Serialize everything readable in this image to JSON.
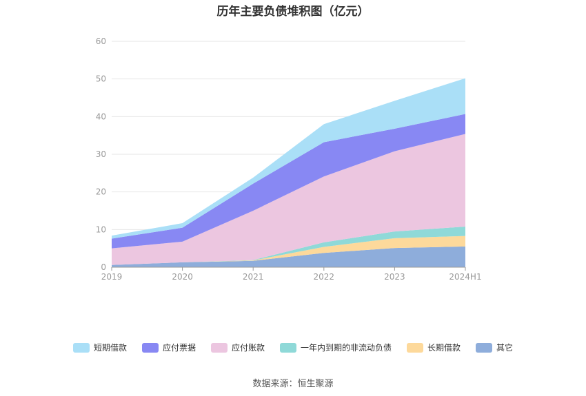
{
  "chart_data": {
    "type": "area",
    "stacked": true,
    "title": "历年主要负债堆积图（亿元）",
    "categories": [
      "2019",
      "2020",
      "2021",
      "2022",
      "2023",
      "2024H1"
    ],
    "ylim": [
      0,
      60
    ],
    "yticks": [
      0,
      10,
      20,
      30,
      40,
      50,
      60
    ],
    "grid": true,
    "legend_position": "bottom",
    "series": [
      {
        "name": "其它",
        "color": "#8eaddb",
        "values": [
          0.6,
          1.3,
          1.7,
          3.8,
          5.1,
          5.5
        ]
      },
      {
        "name": "长期借款",
        "color": "#fdd99b",
        "values": [
          0,
          0,
          0.1,
          1.6,
          2.6,
          2.8
        ]
      },
      {
        "name": "一年内到期的非流动负债",
        "color": "#8fd9d8",
        "values": [
          0,
          0,
          0.1,
          1.2,
          1.8,
          2.5
        ]
      },
      {
        "name": "应付账款",
        "color": "#ecc6e0",
        "values": [
          4.4,
          5.5,
          13.1,
          17.5,
          21.3,
          24.6
        ]
      },
      {
        "name": "应付票据",
        "color": "#8888f3",
        "values": [
          2.6,
          3.7,
          7.2,
          9.1,
          6.0,
          5.3
        ]
      },
      {
        "name": "短期借款",
        "color": "#aadff7",
        "values": [
          0.8,
          1.2,
          1.6,
          4.8,
          7.4,
          9.5
        ]
      }
    ]
  },
  "legend_order": [
    5,
    4,
    3,
    2,
    1,
    0
  ],
  "source": "数据来源：恒生聚源"
}
